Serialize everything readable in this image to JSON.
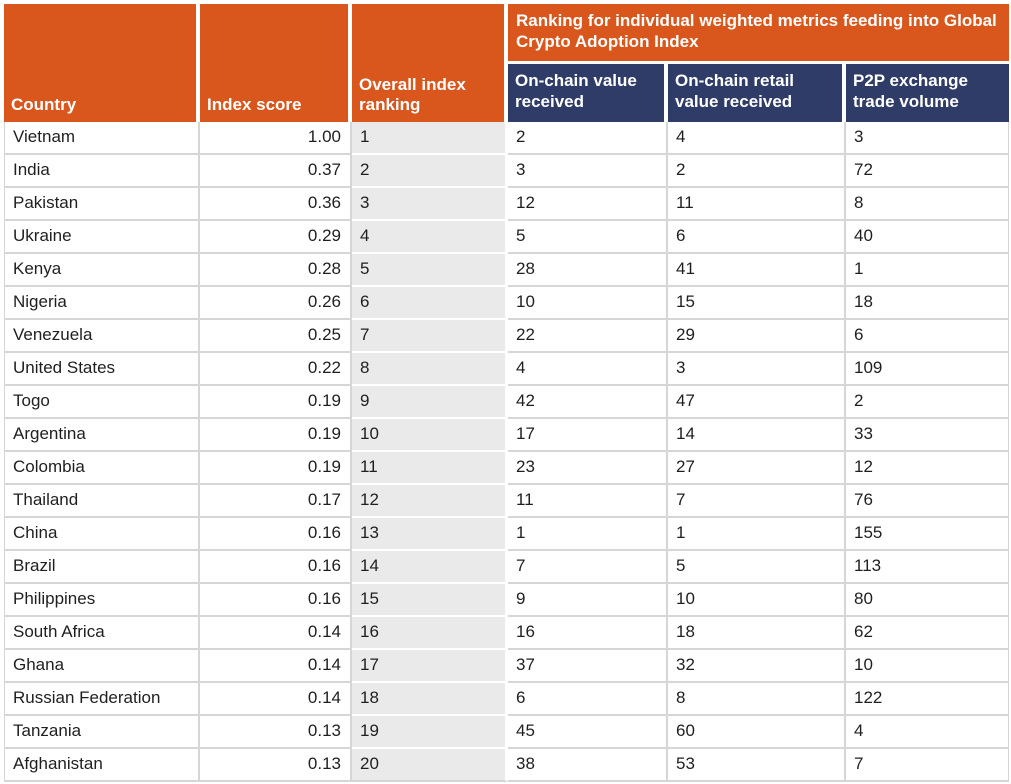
{
  "table": {
    "headers": {
      "country": "Country",
      "index_score": "Index score",
      "overall_ranking": "Overall index ranking",
      "metrics_group": "Ranking for individual weighted metrics feeding into Global Crypto Adoption Index",
      "on_chain_value": "On-chain value received",
      "on_chain_retail": "On-chain retail value received",
      "p2p_volume": "P2P exchange trade volume"
    },
    "rows": [
      {
        "country": "Vietnam",
        "score": "1.00",
        "rank": "1",
        "on_chain": "2",
        "retail": "4",
        "p2p": "3"
      },
      {
        "country": "India",
        "score": "0.37",
        "rank": "2",
        "on_chain": "3",
        "retail": "2",
        "p2p": "72"
      },
      {
        "country": "Pakistan",
        "score": "0.36",
        "rank": "3",
        "on_chain": "12",
        "retail": "11",
        "p2p": "8"
      },
      {
        "country": "Ukraine",
        "score": "0.29",
        "rank": "4",
        "on_chain": "5",
        "retail": "6",
        "p2p": "40"
      },
      {
        "country": "Kenya",
        "score": "0.28",
        "rank": "5",
        "on_chain": "28",
        "retail": "41",
        "p2p": "1"
      },
      {
        "country": "Nigeria",
        "score": "0.26",
        "rank": "6",
        "on_chain": "10",
        "retail": "15",
        "p2p": "18"
      },
      {
        "country": "Venezuela",
        "score": "0.25",
        "rank": "7",
        "on_chain": "22",
        "retail": "29",
        "p2p": "6"
      },
      {
        "country": "United States",
        "score": "0.22",
        "rank": "8",
        "on_chain": "4",
        "retail": "3",
        "p2p": "109"
      },
      {
        "country": "Togo",
        "score": "0.19",
        "rank": "9",
        "on_chain": "42",
        "retail": "47",
        "p2p": "2"
      },
      {
        "country": "Argentina",
        "score": "0.19",
        "rank": "10",
        "on_chain": "17",
        "retail": "14",
        "p2p": "33"
      },
      {
        "country": "Colombia",
        "score": "0.19",
        "rank": "11",
        "on_chain": "23",
        "retail": "27",
        "p2p": "12"
      },
      {
        "country": "Thailand",
        "score": "0.17",
        "rank": "12",
        "on_chain": "11",
        "retail": "7",
        "p2p": "76"
      },
      {
        "country": "China",
        "score": "0.16",
        "rank": "13",
        "on_chain": "1",
        "retail": "1",
        "p2p": "155"
      },
      {
        "country": "Brazil",
        "score": "0.16",
        "rank": "14",
        "on_chain": "7",
        "retail": "5",
        "p2p": "113"
      },
      {
        "country": "Philippines",
        "score": "0.16",
        "rank": "15",
        "on_chain": "9",
        "retail": "10",
        "p2p": "80"
      },
      {
        "country": "South Africa",
        "score": "0.14",
        "rank": "16",
        "on_chain": "16",
        "retail": "18",
        "p2p": "62"
      },
      {
        "country": "Ghana",
        "score": "0.14",
        "rank": "17",
        "on_chain": "37",
        "retail": "32",
        "p2p": "10"
      },
      {
        "country": "Russian Federation",
        "score": "0.14",
        "rank": "18",
        "on_chain": "6",
        "retail": "8",
        "p2p": "122"
      },
      {
        "country": "Tanzania",
        "score": "0.13",
        "rank": "19",
        "on_chain": "45",
        "retail": "60",
        "p2p": "4"
      },
      {
        "country": "Afghanistan",
        "score": "0.13",
        "rank": "20",
        "on_chain": "38",
        "retail": "53",
        "p2p": "7"
      }
    ]
  },
  "colors": {
    "header_orange": "#d9561d",
    "header_navy": "#303c68",
    "ranking_column_gray": "#eaeaea",
    "gridline_gray": "#d6d6d6",
    "header_text": "#ffffff",
    "body_text": "#1f1f1f"
  }
}
